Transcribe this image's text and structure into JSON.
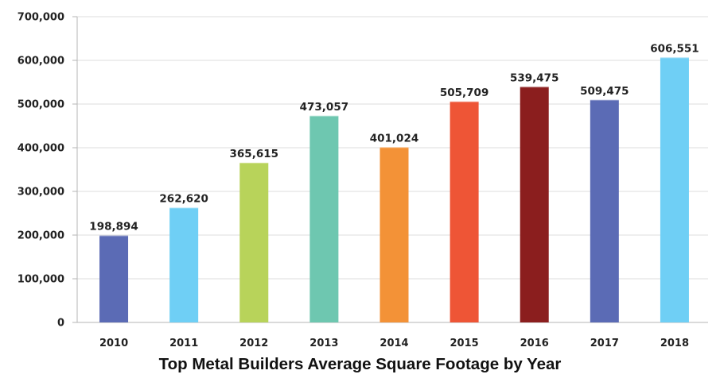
{
  "chart_data": {
    "type": "bar",
    "title": "Top Metal Builders Average Square Footage by Year",
    "xlabel": "",
    "ylabel": "",
    "categories": [
      "2010",
      "2011",
      "2012",
      "2013",
      "2014",
      "2015",
      "2016",
      "2017",
      "2018"
    ],
    "values": [
      198894,
      262620,
      365615,
      473057,
      401024,
      505709,
      539475,
      509475,
      606551
    ],
    "value_labels": [
      "198,894",
      "262,620",
      "365,615",
      "473,057",
      "401,024",
      "505,709",
      "539,475",
      "509,475",
      "606,551"
    ],
    "bar_colors": [
      "#5b6bb5",
      "#6fcff5",
      "#b8d35a",
      "#6ec7b0",
      "#f39237",
      "#ee5536",
      "#8b1e1e",
      "#5b6bb5",
      "#6fcff5"
    ],
    "ylim": [
      0,
      700000
    ],
    "yticks": [
      0,
      100000,
      200000,
      300000,
      400000,
      500000,
      600000,
      700000
    ],
    "ytick_labels": [
      "0",
      "100,000",
      "200,000",
      "300,000",
      "400,000",
      "500,000",
      "600,000",
      "700,000"
    ],
    "grid": true,
    "legend": "none"
  }
}
